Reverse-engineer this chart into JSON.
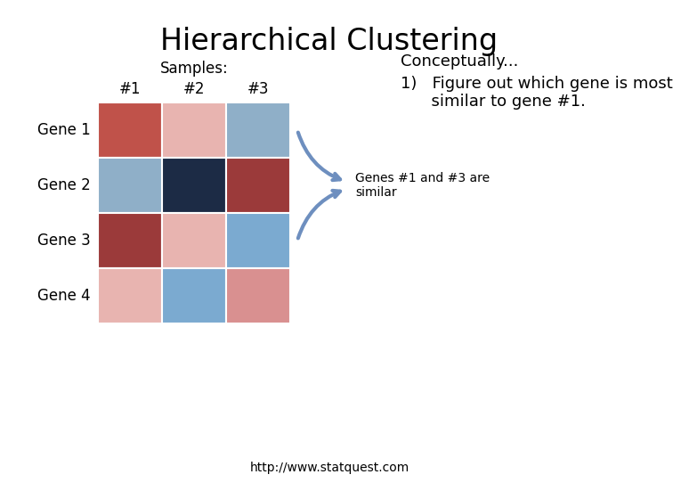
{
  "title": "Hierarchical Clustering",
  "grid_colors": [
    [
      "#c0524a",
      "#e8b4b0",
      "#8fafc8"
    ],
    [
      "#8fafc8",
      "#1c2b45",
      "#9b3a3a"
    ],
    [
      "#9b3a3a",
      "#e8b4b0",
      "#7baad0"
    ],
    [
      "#e8b4b0",
      "#7baad0",
      "#d99090"
    ]
  ],
  "row_labels": [
    "Gene 1",
    "Gene 2",
    "Gene 3",
    "Gene 4"
  ],
  "col_labels": [
    "#1",
    "#2",
    "#3"
  ],
  "samples_label": "Samples:",
  "conceptually_label": "Conceptually...",
  "point1_line1": "1)   Figure out which gene is most",
  "point1_line2": "      similar to gene #1.",
  "annotation_text": "Genes #1 and #3 are\nsimilar",
  "url_text": "http://www.statquest.com",
  "arrow_color": "#6e8fbf",
  "background_color": "#ffffff",
  "title_fontsize": 24,
  "label_fontsize": 12,
  "annotation_fontsize": 10,
  "url_fontsize": 10,
  "conceptually_fontsize": 13,
  "point1_fontsize": 13
}
